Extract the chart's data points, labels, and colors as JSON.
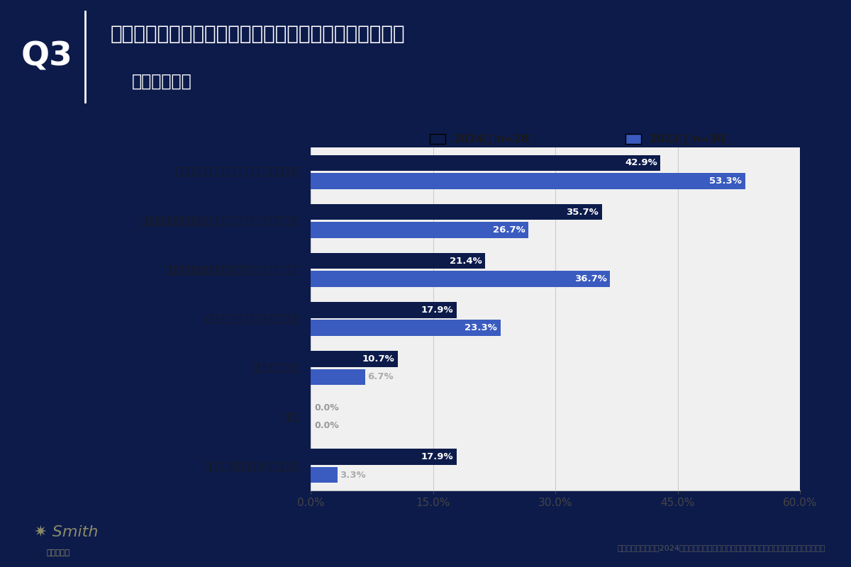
{
  "title_line1": "手作りのプレゼントを渡したい理由を教えてください。",
  "title_line2": "（複数回答）",
  "q_label": "Q3",
  "categories": [
    "自分だけのオリジナルなプレゼントになるから",
    "自分のために作ってくれたという気持ちが相手に会わるから",
    "作るのにかけた時間が、自分の思い出にもなるから",
    "手作りのものは忘れられにくいから",
    "コスパがいいから",
    "その他",
    "特にない/わからない/答えられない"
  ],
  "values_2024": [
    42.9,
    35.7,
    21.4,
    17.9,
    10.7,
    0.0,
    17.9
  ],
  "values_2023": [
    53.3,
    26.7,
    36.7,
    23.3,
    6.7,
    0.0,
    3.3
  ],
  "color_2024": "#0d1b4b",
  "color_2023": "#3a5bbf",
  "color_zero": "#c8c8c8",
  "legend_2024": "2024年（n=28）",
  "legend_2023": "2023年（n=30）",
  "xlim": [
    0,
    60
  ],
  "xticks": [
    0,
    15,
    30,
    45,
    60
  ],
  "xtick_labels": [
    "0.0%",
    "15.0%",
    "30.0%",
    "45.0%",
    "60.0%"
  ],
  "header_bg": "#0d1b4b",
  "chart_bg": "#f0f0f0",
  "footer_text": "株式会社一宝｜　2024年版》北海道在住カップルのクリスマスプレゼントに関する定点調査"
}
